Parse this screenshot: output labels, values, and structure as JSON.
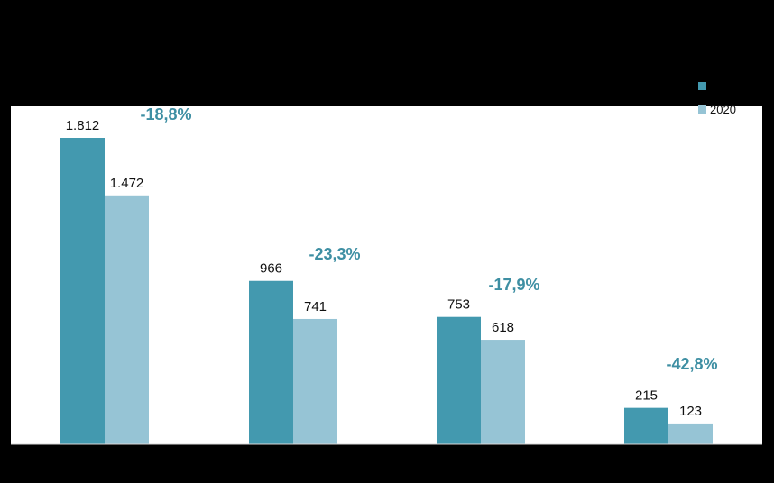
{
  "chart_data": {
    "type": "bar",
    "categories": [
      "",
      "",
      "",
      ""
    ],
    "series": [
      {
        "name": "",
        "color": "#4399AF",
        "values": [
          1812,
          966,
          753,
          215
        ],
        "labels": [
          "1.812",
          "966",
          "753",
          "215"
        ]
      },
      {
        "name": "2020",
        "color": "#96C4D5",
        "values": [
          1472,
          741,
          618,
          123
        ],
        "labels": [
          "1.472",
          "741",
          "618",
          "123"
        ]
      }
    ],
    "changes": [
      "-18,8%",
      "-23,3%",
      "-17,9%",
      "-42,8%"
    ],
    "change_color": "#3E8FA3",
    "ylim": [
      0,
      2000
    ],
    "grid": false,
    "legend_position": "top-right",
    "background": "#000000",
    "plot_background": "#FFFFFF"
  }
}
